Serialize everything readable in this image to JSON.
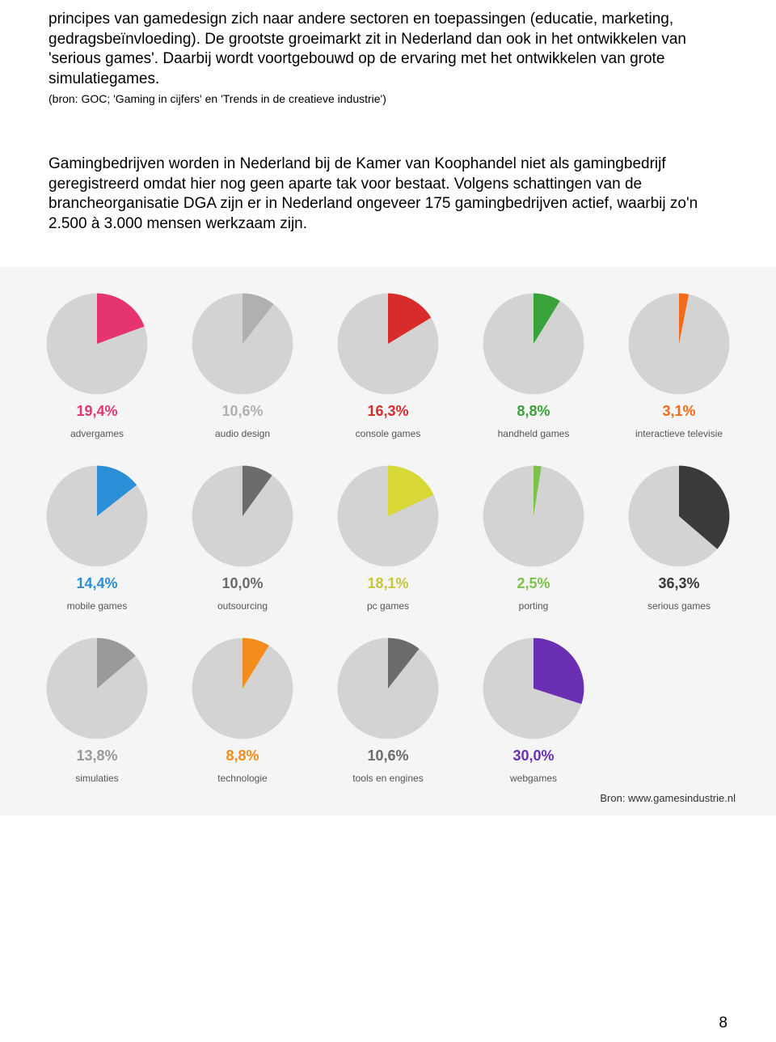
{
  "text": {
    "para1": "principes van gamedesign zich naar andere sectoren en toepassingen (educatie, marketing, gedragsbeïnvloeding). De grootste groeimarkt zit in Nederland dan ook in het ontwikkelen van 'serious games'. Daarbij wordt voortgebouwd op de ervaring met het ontwikkelen van grote simulatiegames.",
    "source1": "(bron: GOC; 'Gaming in cijfers' en 'Trends in de creatieve industrie')",
    "para2": "Gamingbedrijven worden in Nederland bij de Kamer van Koophandel niet als gamingbedrijf geregistreerd omdat hier nog geen aparte tak voor bestaat. Volgens schattingen van de brancheorganisatie DGA zijn er in Nederland ongeveer 175 gamingbedrijven actief, waarbij zo'n 2.500 à 3.000 mensen werkzaam zijn."
  },
  "chart": {
    "background": "#f5f5f5",
    "pie_background": "#d3d3d3",
    "label_color": "#555555",
    "source_text": "Bron: www.gamesindustrie.nl",
    "items": [
      {
        "name": "advergames",
        "pct_label": "19,4%",
        "value": 19.4,
        "slice_color": "#e6346f",
        "text_color": "#e6346f"
      },
      {
        "name": "audio design",
        "pct_label": "10,6%",
        "value": 10.6,
        "slice_color": "#b0b0b0",
        "text_color": "#b0b0b0"
      },
      {
        "name": "console games",
        "pct_label": "16,3%",
        "value": 16.3,
        "slice_color": "#d82c2c",
        "text_color": "#d82c2c"
      },
      {
        "name": "handheld games",
        "pct_label": "8,8%",
        "value": 8.8,
        "slice_color": "#3aa23a",
        "text_color": "#3aa23a"
      },
      {
        "name": "interactieve televisie",
        "pct_label": "3,1%",
        "value": 3.1,
        "slice_color": "#f26a1b",
        "text_color": "#f26a1b"
      },
      {
        "name": "mobile games",
        "pct_label": "14,4%",
        "value": 14.4,
        "slice_color": "#2a8fd6",
        "text_color": "#2a8fd6"
      },
      {
        "name": "outsourcing",
        "pct_label": "10,0%",
        "value": 10.0,
        "slice_color": "#6b6b6b",
        "text_color": "#6b6b6b"
      },
      {
        "name": "pc games",
        "pct_label": "18,1%",
        "value": 18.1,
        "slice_color": "#d8d836",
        "text_color": "#c6c63a"
      },
      {
        "name": "porting",
        "pct_label": "2,5%",
        "value": 2.5,
        "slice_color": "#7bc24a",
        "text_color": "#7bc24a"
      },
      {
        "name": "serious games",
        "pct_label": "36,3%",
        "value": 36.3,
        "slice_color": "#3a3a3a",
        "text_color": "#3a3a3a"
      },
      {
        "name": "simulaties",
        "pct_label": "13,8%",
        "value": 13.8,
        "slice_color": "#9a9a9a",
        "text_color": "#9a9a9a"
      },
      {
        "name": "technologie",
        "pct_label": "8,8%",
        "value": 8.8,
        "slice_color": "#f28c1b",
        "text_color": "#f28c1b"
      },
      {
        "name": "tools en engines",
        "pct_label": "10,6%",
        "value": 10.6,
        "slice_color": "#6b6b6b",
        "text_color": "#6b6b6b"
      },
      {
        "name": "webgames",
        "pct_label": "30,0%",
        "value": 30.0,
        "slice_color": "#6a2fb3",
        "text_color": "#6a2fb3"
      }
    ]
  },
  "page_number": "8"
}
